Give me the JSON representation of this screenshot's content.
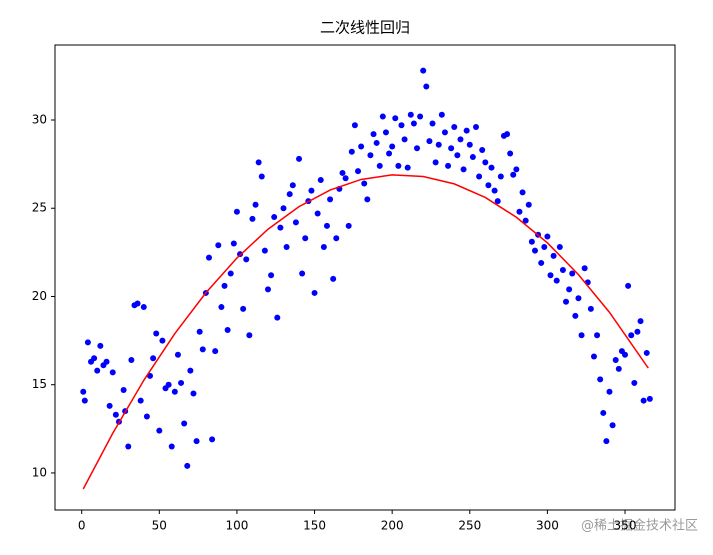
{
  "chart_data": {
    "type": "scatter",
    "title": "二次线性回归",
    "x": [
      1,
      2,
      4,
      6,
      8,
      10,
      12,
      14,
      16,
      18,
      20,
      22,
      24,
      27,
      28,
      30,
      32,
      34,
      36,
      38,
      40,
      42,
      44,
      46,
      48,
      50,
      52,
      54,
      56,
      58,
      60,
      62,
      64,
      66,
      68,
      70,
      72,
      74,
      76,
      78,
      80,
      82,
      84,
      86,
      88,
      90,
      92,
      94,
      96,
      98,
      100,
      102,
      104,
      106,
      108,
      110,
      112,
      114,
      116,
      118,
      120,
      122,
      124,
      126,
      128,
      130,
      132,
      134,
      136,
      138,
      140,
      142,
      144,
      146,
      148,
      150,
      152,
      154,
      156,
      158,
      160,
      162,
      164,
      166,
      168,
      170,
      172,
      174,
      176,
      178,
      180,
      182,
      184,
      186,
      188,
      190,
      192,
      194,
      196,
      198,
      200,
      202,
      204,
      206,
      208,
      210,
      212,
      214,
      216,
      218,
      220,
      222,
      224,
      226,
      228,
      230,
      232,
      234,
      236,
      238,
      240,
      242,
      244,
      246,
      248,
      250,
      252,
      254,
      256,
      258,
      260,
      262,
      264,
      266,
      268,
      270,
      272,
      274,
      276,
      278,
      280,
      282,
      284,
      286,
      288,
      290,
      292,
      294,
      296,
      298,
      300,
      302,
      304,
      306,
      308,
      310,
      312,
      314,
      316,
      318,
      320,
      322,
      324,
      326,
      328,
      330,
      332,
      334,
      336,
      338,
      340,
      342,
      344,
      346,
      348,
      350,
      352,
      354,
      356,
      358,
      360,
      362,
      364,
      366
    ],
    "values": [
      14.6,
      14.1,
      17.4,
      16.3,
      16.5,
      15.8,
      17.2,
      16.1,
      16.3,
      13.8,
      15.7,
      13.3,
      12.9,
      14.7,
      13.5,
      11.5,
      16.4,
      19.5,
      19.6,
      14.1,
      19.4,
      13.2,
      15.5,
      16.5,
      17.9,
      12.4,
      17.5,
      14.8,
      15.0,
      11.5,
      14.6,
      16.7,
      15.1,
      12.8,
      10.4,
      15.8,
      14.5,
      11.8,
      18.0,
      17.0,
      20.2,
      22.2,
      11.9,
      16.9,
      22.9,
      19.4,
      20.6,
      18.1,
      21.3,
      23.0,
      24.8,
      22.4,
      19.3,
      22.1,
      17.8,
      24.4,
      25.2,
      27.6,
      26.8,
      22.6,
      20.4,
      21.2,
      24.5,
      18.8,
      23.9,
      25.0,
      22.8,
      25.8,
      26.3,
      24.2,
      27.8,
      21.3,
      23.3,
      25.4,
      26.0,
      20.2,
      24.7,
      26.6,
      22.8,
      24.0,
      25.5,
      21.0,
      23.3,
      26.1,
      27.0,
      26.7,
      24.0,
      28.2,
      29.7,
      27.1,
      28.5,
      26.4,
      25.5,
      28.0,
      29.2,
      28.7,
      27.4,
      30.2,
      29.3,
      28.1,
      28.5,
      30.1,
      27.4,
      29.7,
      28.9,
      27.3,
      30.3,
      29.8,
      28.4,
      30.2,
      32.8,
      31.9,
      28.8,
      29.8,
      27.6,
      28.6,
      30.3,
      29.3,
      27.4,
      28.4,
      29.6,
      28.0,
      28.9,
      27.2,
      29.4,
      28.6,
      27.9,
      29.6,
      26.8,
      28.3,
      27.6,
      26.3,
      27.3,
      26.0,
      25.4,
      26.8,
      29.1,
      29.2,
      28.1,
      26.9,
      27.2,
      24.8,
      25.9,
      24.3,
      25.2,
      23.1,
      22.6,
      23.5,
      21.9,
      22.8,
      23.4,
      21.2,
      22.3,
      20.9,
      22.8,
      21.5,
      19.7,
      20.4,
      21.3,
      18.9,
      19.9,
      17.8,
      21.6,
      20.8,
      19.3,
      16.6,
      17.8,
      15.3,
      13.4,
      11.8,
      14.6,
      12.7,
      16.4,
      15.9,
      16.9,
      16.7,
      20.6,
      17.8,
      15.1,
      18.0,
      18.6,
      14.1,
      16.8,
      14.2
    ],
    "color": "#0000ff",
    "fit": {
      "type": "line",
      "color": "#ff0000",
      "x": [
        1,
        20,
        40,
        60,
        80,
        100,
        120,
        140,
        160,
        180,
        200,
        220,
        240,
        260,
        280,
        300,
        320,
        340,
        365
      ],
      "values": [
        9.09,
        12.25,
        15.25,
        17.9,
        20.21,
        22.18,
        23.81,
        25.09,
        26.03,
        26.63,
        26.89,
        26.8,
        26.38,
        25.61,
        24.49,
        23.04,
        21.24,
        19.1,
        15.94
      ]
    },
    "xlim": [
      -17.2,
      382.2
    ],
    "ylim": [
      7.9,
      34.25
    ],
    "xticks": [
      0,
      50,
      100,
      150,
      200,
      250,
      300,
      350
    ],
    "yticks": [
      10,
      15,
      20,
      25,
      30
    ]
  },
  "watermark": "@稀土掘金技术社区"
}
